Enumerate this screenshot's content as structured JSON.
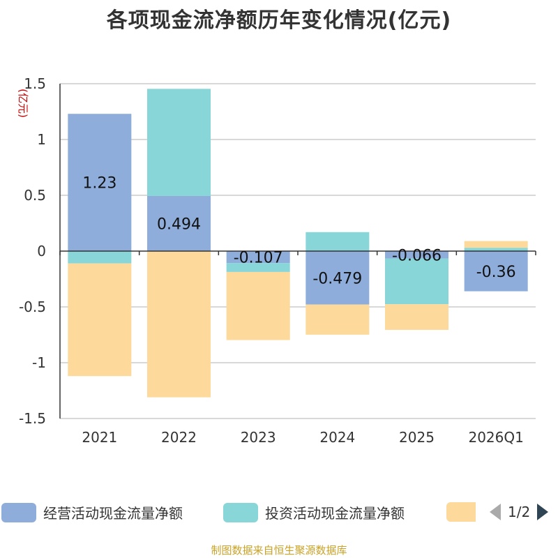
{
  "title": "各项现金流净额历年变化情况(亿元)",
  "footer": "制图数据来自恒生聚源数据库",
  "legend": {
    "items": [
      {
        "label": "经营活动现金流量净额",
        "color": "#8eaddb"
      },
      {
        "label": "投资活动现金流量净额",
        "color": "#88d6d8"
      },
      {
        "label": "",
        "color": "#fdd99b"
      }
    ],
    "pager": "1/2"
  },
  "chart_data": {
    "type": "bar",
    "stacked": true,
    "unit_label": "(亿元)",
    "categories": [
      "2021",
      "2022",
      "2023",
      "2024",
      "2025",
      "2026Q1"
    ],
    "ylim": [
      -1.5,
      1.5
    ],
    "yticks": [
      1.5,
      1,
      0.5,
      0,
      -0.5,
      -1,
      -1.5
    ],
    "ytick_labels": [
      "1.5",
      "1",
      "0.5",
      "0",
      "-0.5",
      "-1",
      "-1.5"
    ],
    "grid": true,
    "legend_position": "bottom",
    "series": [
      {
        "name": "经营活动现金流量净额",
        "color": "#8eaddb",
        "values": [
          1.23,
          0.494,
          -0.107,
          -0.479,
          -0.066,
          -0.36
        ],
        "labels": [
          "1.23",
          "0.494",
          "-0.107",
          "-0.479",
          "-0.066",
          "-0.36"
        ]
      },
      {
        "name": "投资活动现金流量净额",
        "color": "#88d6d8",
        "values": [
          -0.11,
          0.96,
          -0.08,
          0.17,
          -0.41,
          0.03
        ],
        "labels": [
          "",
          "",
          "",
          "",
          "",
          ""
        ]
      },
      {
        "color": "#fdd99b",
        "values": [
          -1.01,
          -1.31,
          -0.61,
          -0.27,
          -0.23,
          0.06
        ],
        "labels": [
          "",
          "",
          "",
          "",
          "",
          ""
        ]
      }
    ]
  }
}
